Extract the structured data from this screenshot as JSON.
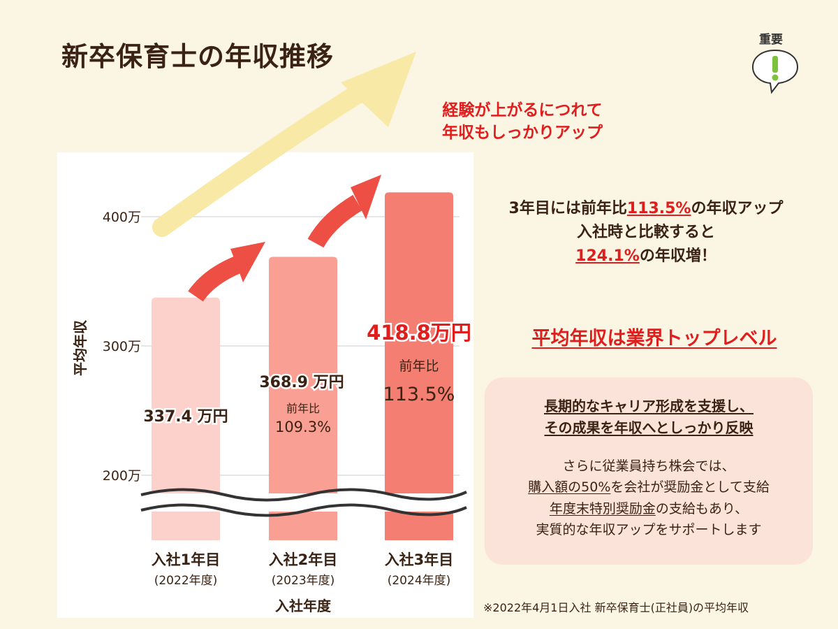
{
  "title": "新卒保育士の年収推移",
  "badge": {
    "label": "重要",
    "icon": "exclamation-bubble-icon"
  },
  "headline": [
    "経験が上がるにつれて",
    "年収もしっかりアップ"
  ],
  "lead": {
    "line1_pre": "3年目には前年比",
    "line1_hl": "113.5%",
    "line1_post": "の年収アップ",
    "line2": "入社時と比較すると",
    "line3_hl": "124.1%",
    "line3_post": "の年収増！"
  },
  "level_text": "平均年収は業界トップレベル",
  "card": {
    "heading_lines": [
      "長期的なキャリア形成を支援し、",
      "その成果を年収へとしっかり反映"
    ],
    "body_line1": "さらに従業員持ち株会では、",
    "body_line2_u": "購入額の50%",
    "body_line2_rest": "を会社が奨励金として支給",
    "body_line3_u": "年度末特別奨励金",
    "body_line3_rest": "の支給もあり、",
    "body_line4": "実質的な年収アップをサポートします"
  },
  "footnote": "※2022年4月1日入社 新卒保育士(正社員)の平均年収",
  "colors": {
    "accent_red": "#e01e1e",
    "text_brown": "#3b2314",
    "bar1": "#fcd0cb",
    "bar2": "#f99f94",
    "bar3": "#f47e72",
    "arrow_red": "#ee4f45",
    "big_arrow": "#f9e9a6"
  },
  "chart_data": {
    "type": "bar",
    "categories": [
      "入社1年目",
      "入社2年目",
      "入社3年目"
    ],
    "category_sublabels": [
      "(2022年度)",
      "(2023年度)",
      "(2024年度)"
    ],
    "values": [
      337.4,
      368.9,
      418.8
    ],
    "value_labels": [
      "337.4 万円",
      "368.9 万円",
      "418.8万円"
    ],
    "yoy_label": "前年比",
    "yoy": [
      null,
      "109.3%",
      "113.5%"
    ],
    "ylabel": "平均年収",
    "xlabel": "入社年度",
    "yticks": [
      200,
      300,
      400
    ],
    "ytick_labels": [
      "200万",
      "300万",
      "400万"
    ],
    "y_axis_break": true,
    "grid": true
  }
}
